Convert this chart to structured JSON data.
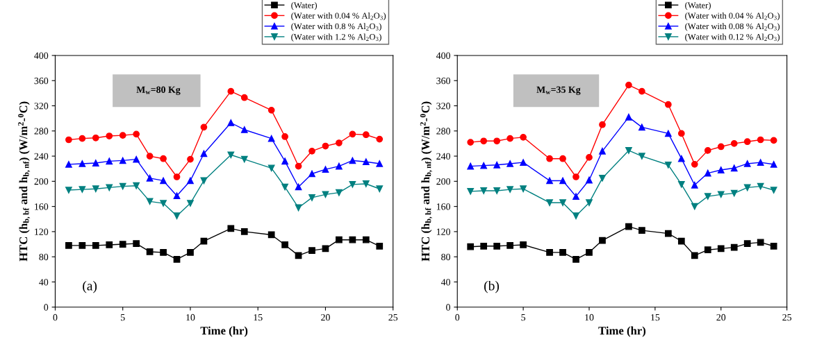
{
  "chart_data": [
    {
      "type": "line",
      "xlabel": "Time (hr)",
      "ylabel": "HTC (h$_{b,bf}$ and h$_{b,nf}$) (W/m$^{2}$-$^{0}$C)",
      "annotations": [
        "M$_{w}$=80 Kg",
        "(a)"
      ],
      "x": [
        1,
        2,
        3,
        4,
        5,
        6,
        7,
        8,
        9,
        10,
        11,
        13,
        14,
        16,
        17,
        18,
        19,
        20,
        21,
        22,
        23,
        24
      ],
      "xlim": [
        0,
        25
      ],
      "xticks": [
        0,
        5,
        10,
        15,
        20,
        25
      ],
      "ylim": [
        0,
        400
      ],
      "yticks": [
        0,
        40,
        80,
        120,
        160,
        200,
        240,
        280,
        320,
        360,
        400
      ],
      "grid": false,
      "legend": "top right",
      "series": [
        {
          "name": "(Water)",
          "color": "#000000",
          "marker": "square",
          "values": [
            98,
            98,
            98,
            99,
            100,
            101,
            88,
            87,
            76,
            87,
            105,
            125,
            120,
            115,
            99,
            82,
            90,
            93,
            107,
            107,
            107,
            97
          ]
        },
        {
          "name": "(Water with 0.04 % Al$_{2}$O$_{3}$)",
          "color": "#ff0000",
          "marker": "circle",
          "values": [
            266,
            268,
            269,
            272,
            273,
            275,
            240,
            236,
            207,
            235,
            286,
            343,
            333,
            313,
            271,
            224,
            248,
            256,
            261,
            275,
            274,
            267
          ]
        },
        {
          "name": "(Water with 0.8 % Al$_{2}$O$_{3}$)",
          "color": "#0000ff",
          "marker": "triangle",
          "values": [
            227,
            228,
            229,
            232,
            233,
            235,
            205,
            201,
            177,
            201,
            244,
            293,
            282,
            268,
            232,
            191,
            212,
            219,
            224,
            233,
            231,
            228
          ]
        },
        {
          "name": "(Water with 1.2 % Al$_{2}$O$_{3}$)",
          "color": "#008080",
          "marker": "triangle_down",
          "values": [
            186,
            187,
            188,
            190,
            192,
            193,
            168,
            165,
            145,
            165,
            201,
            242,
            235,
            221,
            191,
            158,
            174,
            179,
            182,
            195,
            196,
            188
          ]
        }
      ]
    },
    {
      "type": "line",
      "xlabel": "Time (hr)",
      "ylabel": "HTC (h$_{b,bf}$ and h$_{b,nf}$) (W/m$^{2}$-$^{0}$C)",
      "annotations": [
        "M$_{w}$=35 Kg",
        "(b)"
      ],
      "x": [
        1,
        2,
        3,
        4,
        5,
        7,
        8,
        9,
        10,
        11,
        13,
        14,
        16,
        17,
        18,
        19,
        20,
        21,
        22,
        23,
        24
      ],
      "xlim": [
        0,
        25
      ],
      "xticks": [
        0,
        5,
        10,
        15,
        20,
        25
      ],
      "ylim": [
        0,
        400
      ],
      "yticks": [
        0,
        40,
        80,
        120,
        160,
        200,
        240,
        280,
        320,
        360,
        400
      ],
      "grid": false,
      "legend": "top right",
      "series": [
        {
          "name": "(Water)",
          "color": "#000000",
          "marker": "square",
          "values": [
            96,
            97,
            97,
            98,
            99,
            87,
            87,
            76,
            87,
            106,
            128,
            122,
            117,
            105,
            82,
            91,
            93,
            95,
            101,
            103,
            97
          ]
        },
        {
          "name": "(Water with 0.04 % Al$_{2}$O$_{3}$)",
          "color": "#ff0000",
          "marker": "circle",
          "values": [
            262,
            264,
            264,
            268,
            270,
            236,
            236,
            207,
            238,
            290,
            353,
            343,
            322,
            276,
            227,
            249,
            255,
            260,
            263,
            266,
            265
          ]
        },
        {
          "name": "(Water with 0.08 % Al$_{2}$O$_{3}$)",
          "color": "#0000ff",
          "marker": "triangle",
          "values": [
            224,
            225,
            226,
            228,
            230,
            201,
            201,
            176,
            202,
            248,
            302,
            286,
            276,
            236,
            194,
            213,
            218,
            221,
            228,
            230,
            227
          ]
        },
        {
          "name": "(Water with 0.12 % Al$_{2}$O$_{3}$)",
          "color": "#008080",
          "marker": "triangle_down",
          "values": [
            184,
            185,
            185,
            187,
            188,
            166,
            166,
            145,
            166,
            205,
            249,
            240,
            226,
            195,
            160,
            176,
            179,
            181,
            190,
            192,
            186
          ]
        }
      ]
    }
  ]
}
